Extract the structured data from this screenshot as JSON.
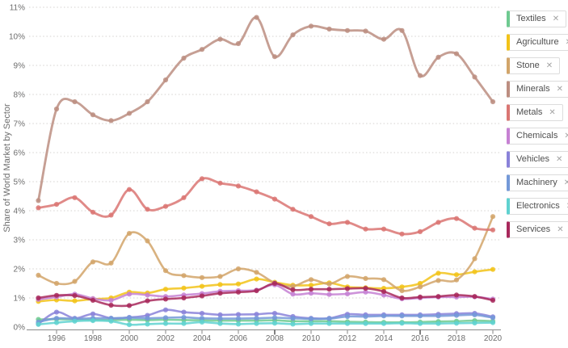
{
  "y_axis_title": "Share of World Market by Sector",
  "legend": {
    "close_glyph": "✕",
    "items": [
      {
        "id": "textiles",
        "label": "Textiles",
        "color": "#6fca91"
      },
      {
        "id": "agriculture",
        "label": "Agriculture",
        "color": "#f2c319"
      },
      {
        "id": "stone",
        "label": "Stone",
        "color": "#d2a56a"
      },
      {
        "id": "minerals",
        "label": "Minerals",
        "color": "#bc8e81"
      },
      {
        "id": "metals",
        "label": "Metals",
        "color": "#da7673"
      },
      {
        "id": "chemicals",
        "label": "Chemicals",
        "color": "#c681d3"
      },
      {
        "id": "vehicles",
        "label": "Vehicles",
        "color": "#8a82d9"
      },
      {
        "id": "machinery",
        "label": "Machinery",
        "color": "#7499d8"
      },
      {
        "id": "electronics",
        "label": "Electronics",
        "color": "#5fd2d0"
      },
      {
        "id": "services",
        "label": "Services",
        "color": "#a8295c"
      }
    ]
  },
  "chart_data": {
    "type": "line",
    "title": "",
    "xlabel": "",
    "ylabel": "Share of World Market by Sector",
    "ylim": [
      0,
      11
    ],
    "grid": "horizontal dotted",
    "legend_position": "right overlay",
    "y_tick_labels": [
      "0%",
      "1%",
      "2%",
      "3%",
      "4%",
      "5%",
      "6%",
      "7%",
      "8%",
      "9%",
      "10%",
      "11%"
    ],
    "x_tick_labels": [
      "1996",
      "1998",
      "2000",
      "2002",
      "2004",
      "2006",
      "2008",
      "2010",
      "2012",
      "2014",
      "2016",
      "2018",
      "2020"
    ],
    "x": [
      1995,
      1996,
      1997,
      1998,
      1999,
      2000,
      2001,
      2002,
      2003,
      2004,
      2005,
      2006,
      2007,
      2008,
      2009,
      2010,
      2011,
      2012,
      2013,
      2014,
      2015,
      2016,
      2017,
      2018,
      2019,
      2020
    ],
    "series": [
      {
        "name": "Textiles",
        "color": "#6fca91",
        "values": [
          0.26,
          0.27,
          0.26,
          0.25,
          0.24,
          0.25,
          0.24,
          0.25,
          0.24,
          0.23,
          0.22,
          0.22,
          0.22,
          0.23,
          0.2,
          0.2,
          0.2,
          0.18,
          0.17,
          0.16,
          0.16,
          0.17,
          0.19,
          0.2,
          0.22,
          0.2
        ]
      },
      {
        "name": "Agriculture",
        "color": "#f2c319",
        "values": [
          0.88,
          0.93,
          0.9,
          0.96,
          1.0,
          1.2,
          1.17,
          1.3,
          1.34,
          1.4,
          1.46,
          1.48,
          1.65,
          1.54,
          1.44,
          1.44,
          1.52,
          1.38,
          1.35,
          1.33,
          1.38,
          1.5,
          1.85,
          1.8,
          1.9,
          1.98
        ]
      },
      {
        "name": "Stone",
        "color": "#d2a56a",
        "values": [
          1.78,
          1.5,
          1.57,
          2.24,
          2.2,
          3.22,
          2.96,
          1.94,
          1.77,
          1.7,
          1.74,
          2.0,
          1.88,
          1.52,
          1.4,
          1.63,
          1.48,
          1.74,
          1.67,
          1.63,
          1.25,
          1.38,
          1.6,
          1.62,
          2.35,
          3.8
        ]
      },
      {
        "name": "Minerals",
        "color": "#bc8e81",
        "values": [
          4.35,
          7.5,
          7.75,
          7.3,
          7.1,
          7.35,
          7.75,
          8.5,
          9.25,
          9.55,
          9.9,
          9.75,
          10.65,
          9.3,
          10.05,
          10.35,
          10.25,
          10.2,
          10.18,
          9.9,
          10.2,
          8.65,
          9.28,
          9.4,
          8.6,
          7.75
        ]
      },
      {
        "name": "Metals",
        "color": "#da7673",
        "values": [
          4.1,
          4.22,
          4.45,
          3.95,
          3.85,
          4.73,
          4.05,
          4.15,
          4.45,
          5.1,
          4.95,
          4.85,
          4.65,
          4.4,
          4.05,
          3.8,
          3.55,
          3.6,
          3.37,
          3.37,
          3.2,
          3.28,
          3.6,
          3.73,
          3.4,
          3.34
        ]
      },
      {
        "name": "Chemicals",
        "color": "#c681d3",
        "values": [
          0.95,
          1.03,
          1.13,
          0.98,
          0.92,
          1.13,
          1.1,
          1.05,
          1.1,
          1.15,
          1.23,
          1.25,
          1.27,
          1.45,
          1.13,
          1.16,
          1.12,
          1.14,
          1.2,
          1.1,
          0.97,
          1.0,
          1.03,
          1.03,
          1.04,
          0.96
        ]
      },
      {
        "name": "Vehicles",
        "color": "#8a82d9",
        "values": [
          0.11,
          0.51,
          0.3,
          0.45,
          0.3,
          0.33,
          0.4,
          0.59,
          0.51,
          0.47,
          0.42,
          0.43,
          0.44,
          0.47,
          0.36,
          0.3,
          0.3,
          0.44,
          0.42,
          0.42,
          0.42,
          0.42,
          0.44,
          0.46,
          0.47,
          0.35
        ]
      },
      {
        "name": "Machinery",
        "color": "#7499d8",
        "values": [
          0.17,
          0.3,
          0.28,
          0.3,
          0.3,
          0.32,
          0.3,
          0.32,
          0.33,
          0.3,
          0.29,
          0.29,
          0.3,
          0.32,
          0.3,
          0.28,
          0.29,
          0.36,
          0.36,
          0.38,
          0.38,
          0.38,
          0.38,
          0.4,
          0.42,
          0.32
        ]
      },
      {
        "name": "Electronics",
        "color": "#5fd2d0",
        "values": [
          0.09,
          0.15,
          0.2,
          0.22,
          0.2,
          0.08,
          0.1,
          0.12,
          0.12,
          0.17,
          0.12,
          0.1,
          0.12,
          0.13,
          0.1,
          0.12,
          0.12,
          0.12,
          0.12,
          0.12,
          0.13,
          0.12,
          0.12,
          0.13,
          0.14,
          0.15
        ]
      },
      {
        "name": "Services",
        "color": "#a8295c",
        "values": [
          1.0,
          1.09,
          1.08,
          0.92,
          0.75,
          0.74,
          0.9,
          0.96,
          1.0,
          1.07,
          1.16,
          1.2,
          1.25,
          1.5,
          1.28,
          1.3,
          1.3,
          1.32,
          1.33,
          1.22,
          1.0,
          1.03,
          1.05,
          1.1,
          1.05,
          0.92
        ]
      }
    ],
    "axis_colors": {
      "text": "#6d6d6d",
      "axis_line": "#9a9a9a",
      "grid": "#d4d2cf"
    }
  }
}
